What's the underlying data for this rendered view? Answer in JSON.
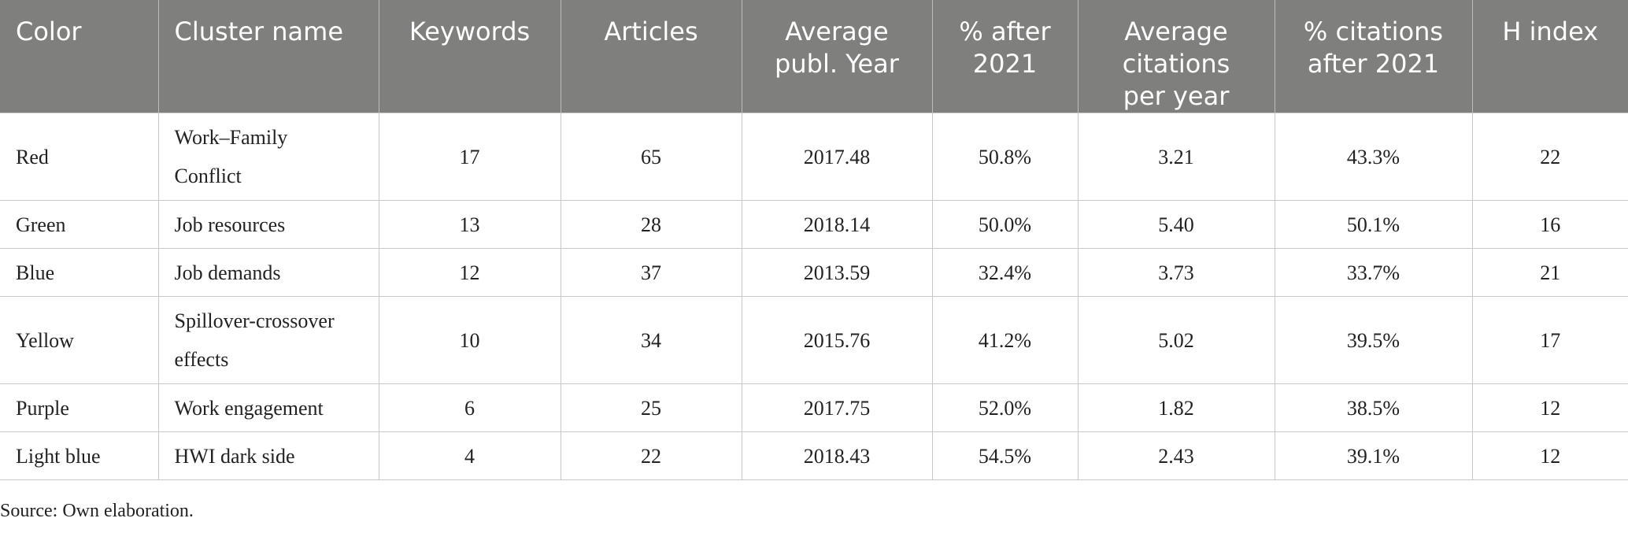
{
  "table": {
    "headers": [
      "Color",
      "Cluster name",
      "Keywords",
      "Articles",
      "Average publ. Year",
      "% after 2021",
      "Average citations per year",
      "% citations after 2021",
      "H index"
    ],
    "rows": [
      [
        "Red",
        "Work–Family Conflict",
        "17",
        "65",
        "2017.48",
        "50.8%",
        "3.21",
        "43.3%",
        "22"
      ],
      [
        "Green",
        "Job resources",
        "13",
        "28",
        "2018.14",
        "50.0%",
        "5.40",
        "50.1%",
        "16"
      ],
      [
        "Blue",
        "Job demands",
        "12",
        "37",
        "2013.59",
        "32.4%",
        "3.73",
        "33.7%",
        "21"
      ],
      [
        "Yellow",
        "Spillover-crossover effects",
        "10",
        "34",
        "2015.76",
        "41.2%",
        "5.02",
        "39.5%",
        "17"
      ],
      [
        "Purple",
        "Work engagement",
        "6",
        "25",
        "2017.75",
        "52.0%",
        "1.82",
        "38.5%",
        "12"
      ],
      [
        "Light blue",
        "HWI dark side",
        "4",
        "22",
        "2018.43",
        "54.5%",
        "2.43",
        "39.1%",
        "12"
      ]
    ]
  },
  "caption": "Source: Own elaboration.",
  "colors": {
    "header_bg": "#7f7f7d",
    "header_text": "#ffffff",
    "grid": "#c8c8c8"
  }
}
